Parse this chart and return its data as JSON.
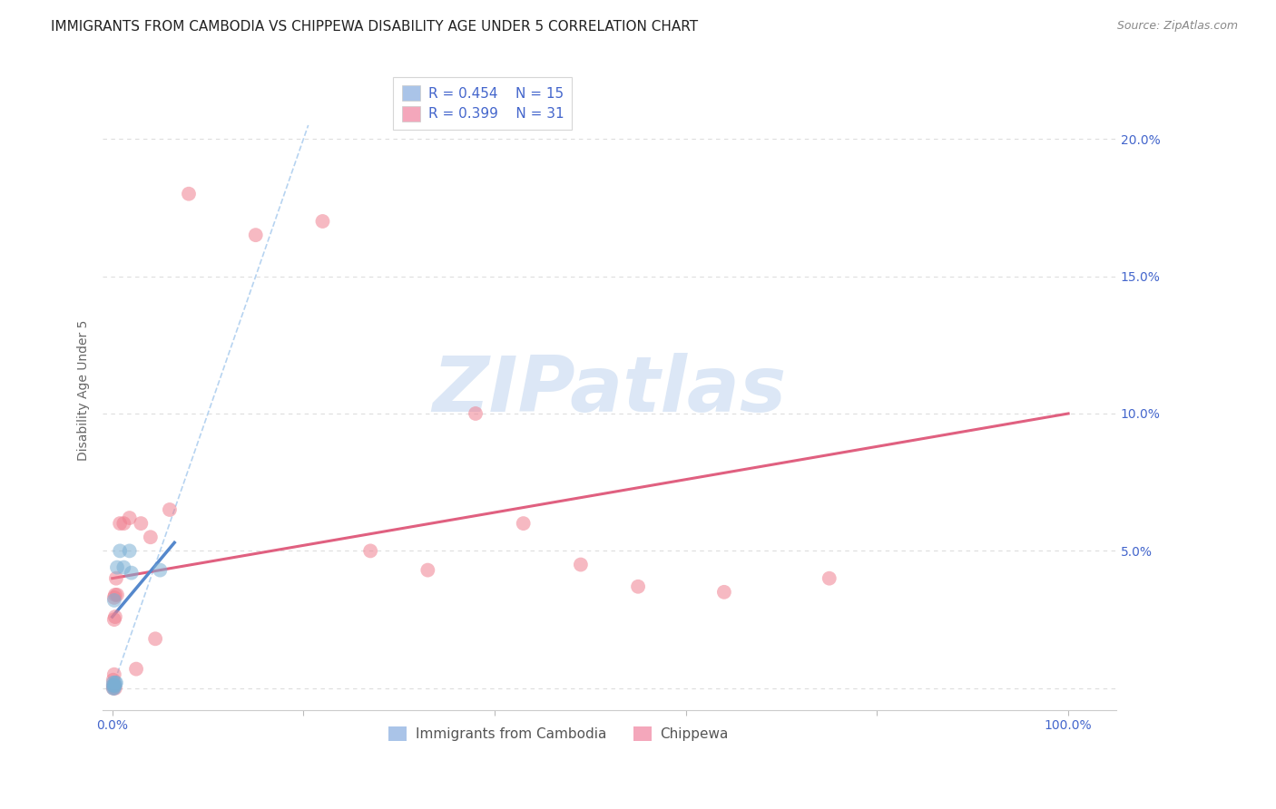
{
  "title": "IMMIGRANTS FROM CAMBODIA VS CHIPPEWA DISABILITY AGE UNDER 5 CORRELATION CHART",
  "source": "Source: ZipAtlas.com",
  "ylabel_label": "Disability Age Under 5",
  "x_tick_positions": [
    0.0,
    0.2,
    0.4,
    0.6,
    0.8,
    1.0
  ],
  "x_tick_labels": [
    "0.0%",
    "",
    "",
    "",
    "",
    "100.0%"
  ],
  "y_tick_positions": [
    0.0,
    0.05,
    0.1,
    0.15,
    0.2
  ],
  "y_tick_labels": [
    "",
    "5.0%",
    "10.0%",
    "15.0%",
    "20.0%"
  ],
  "xlim": [
    -0.01,
    1.05
  ],
  "ylim": [
    -0.008,
    0.225
  ],
  "cambodia_points": [
    [
      0.001,
      0.0
    ],
    [
      0.002,
      0.0
    ],
    [
      0.001,
      0.001
    ],
    [
      0.003,
      0.001
    ],
    [
      0.002,
      0.001
    ],
    [
      0.001,
      0.002
    ],
    [
      0.003,
      0.002
    ],
    [
      0.004,
      0.002
    ],
    [
      0.002,
      0.032
    ],
    [
      0.005,
      0.044
    ],
    [
      0.012,
      0.044
    ],
    [
      0.02,
      0.042
    ],
    [
      0.018,
      0.05
    ],
    [
      0.008,
      0.05
    ],
    [
      0.05,
      0.043
    ]
  ],
  "cambodia_line_x": [
    0.0,
    0.065
  ],
  "cambodia_line_y": [
    0.026,
    0.053
  ],
  "chippewa_points": [
    [
      0.001,
      0.0
    ],
    [
      0.001,
      0.001
    ],
    [
      0.002,
      0.001
    ],
    [
      0.003,
      0.0
    ],
    [
      0.002,
      0.033
    ],
    [
      0.003,
      0.034
    ],
    [
      0.004,
      0.04
    ],
    [
      0.005,
      0.034
    ],
    [
      0.008,
      0.06
    ],
    [
      0.012,
      0.06
    ],
    [
      0.018,
      0.062
    ],
    [
      0.025,
      0.007
    ],
    [
      0.03,
      0.06
    ],
    [
      0.04,
      0.055
    ],
    [
      0.045,
      0.018
    ],
    [
      0.06,
      0.065
    ],
    [
      0.08,
      0.18
    ],
    [
      0.15,
      0.165
    ],
    [
      0.22,
      0.17
    ],
    [
      0.27,
      0.05
    ],
    [
      0.33,
      0.043
    ],
    [
      0.38,
      0.1
    ],
    [
      0.43,
      0.06
    ],
    [
      0.49,
      0.045
    ],
    [
      0.55,
      0.037
    ],
    [
      0.64,
      0.035
    ],
    [
      0.75,
      0.04
    ],
    [
      0.002,
      0.025
    ],
    [
      0.003,
      0.026
    ],
    [
      0.002,
      0.005
    ],
    [
      0.001,
      0.003
    ]
  ],
  "chippewa_line_x": [
    0.0,
    1.0
  ],
  "chippewa_line_y": [
    0.04,
    0.1
  ],
  "diagonal_line_x": [
    0.0,
    0.205
  ],
  "diagonal_line_y": [
    0.0,
    0.205
  ],
  "cambodia_color": "#7bafd4",
  "chippewa_color": "#f08090",
  "diagonal_color": "#aaccee",
  "cambodia_line_color": "#5588cc",
  "chippewa_line_color": "#e06080",
  "bg_color": "#ffffff",
  "grid_color": "#dddddd",
  "tick_color": "#4466cc",
  "title_color": "#222222",
  "source_color": "#888888",
  "ylabel_color": "#666666",
  "watermark_text": "ZIPatlas",
  "watermark_color": "#c5d8f0",
  "legend_top": [
    {
      "label": "R = 0.454    N = 15",
      "color": "#aac4e8"
    },
    {
      "label": "R = 0.399    N = 31",
      "color": "#f4a7bb"
    }
  ],
  "legend_bottom": [
    {
      "label": "Immigrants from Cambodia",
      "color": "#aac4e8"
    },
    {
      "label": "Chippewa",
      "color": "#f4a7bb"
    }
  ],
  "title_fontsize": 11,
  "source_fontsize": 9,
  "tick_fontsize": 10,
  "axis_label_fontsize": 10,
  "legend_fontsize": 11,
  "marker_size": 130,
  "marker_alpha": 0.55
}
